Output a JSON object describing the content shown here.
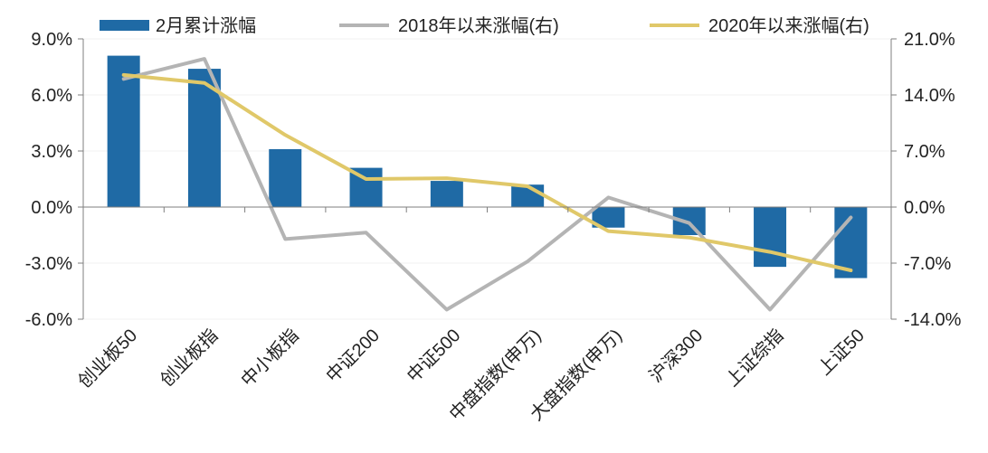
{
  "chart_data": {
    "type": "bar+line",
    "title": "",
    "categories": [
      "创业板50",
      "创业板指",
      "中小板指",
      "中证200",
      "中证500",
      "中盘指数(申万)",
      "大盘指数(申万)",
      "沪深300",
      "上证综指",
      "上证50"
    ],
    "y_left": {
      "ylim": [
        -6.0,
        9.0
      ],
      "ticks": [
        "-6.0%",
        "-3.0%",
        "0.0%",
        "3.0%",
        "6.0%",
        "9.0%"
      ]
    },
    "y_right": {
      "ylim": [
        -14.0,
        21.0
      ],
      "ticks": [
        "-14.0%",
        "-7.0%",
        "0.0%",
        "7.0%",
        "14.0%",
        "21.0%"
      ]
    },
    "series": [
      {
        "name": "2月累计涨幅",
        "kind": "bar",
        "axis": "left",
        "color": "#1f6aa5",
        "values": [
          8.1,
          7.4,
          3.1,
          2.1,
          1.4,
          1.2,
          -1.1,
          -1.5,
          -3.2,
          -3.8
        ]
      },
      {
        "name": "2018年以来涨幅(右)",
        "kind": "line",
        "axis": "right",
        "color": "#b4b4b4",
        "values": [
          16.0,
          18.5,
          -4.0,
          -3.2,
          -12.8,
          -6.8,
          1.2,
          -2.0,
          -12.8,
          -1.3
        ]
      },
      {
        "name": "2020年以来涨幅(右)",
        "kind": "line",
        "axis": "right",
        "color": "#e0c869",
        "values": [
          16.5,
          15.5,
          9.0,
          3.5,
          3.6,
          2.6,
          -3.0,
          -3.8,
          -5.6,
          -7.9
        ]
      }
    ],
    "legend_position": "top"
  }
}
